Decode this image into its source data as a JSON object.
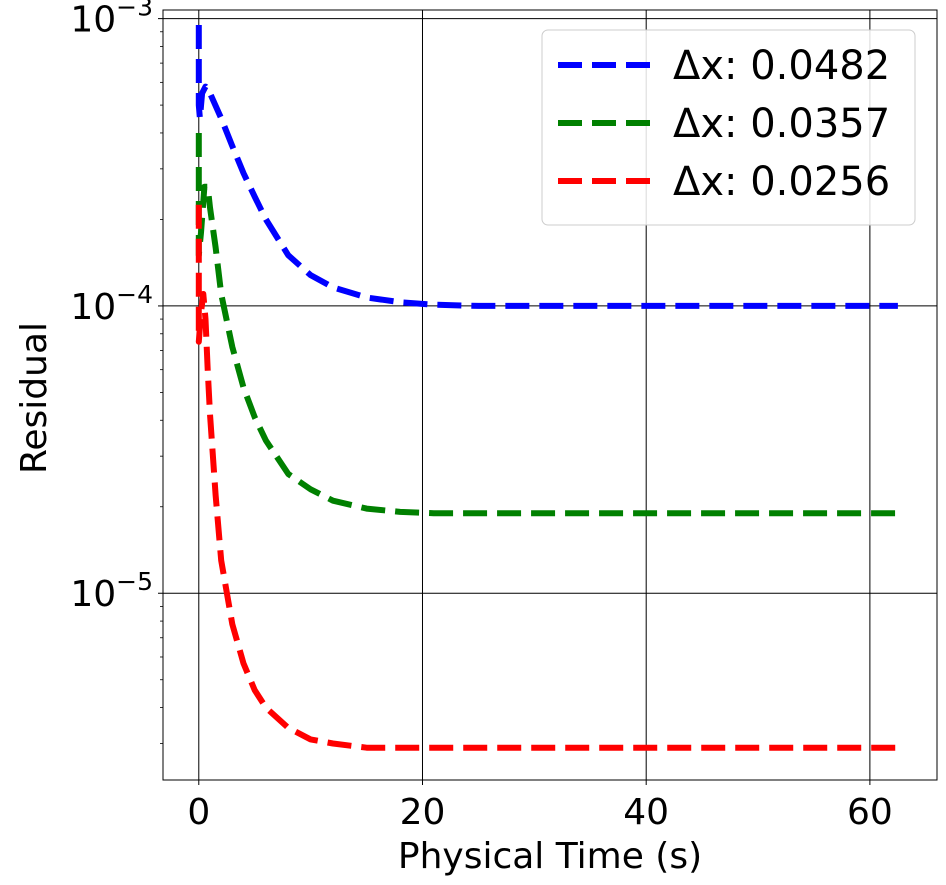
{
  "chart_data": {
    "type": "line",
    "title": "",
    "xlabel": "Physical Time (s)",
    "ylabel": "Residual",
    "xlim": [
      -3.2,
      66
    ],
    "ylim_log10": [
      -5.65,
      -2.97
    ],
    "yscale": "log",
    "grid": true,
    "legend_position": "top-right",
    "x_ticks": [
      {
        "value": 0,
        "label": "0"
      },
      {
        "value": 20,
        "label": "20"
      },
      {
        "value": 40,
        "label": "40"
      },
      {
        "value": 60,
        "label": "60"
      }
    ],
    "y_ticks": [
      {
        "exp": -3,
        "base": "10",
        "sup": "−3"
      },
      {
        "exp": -4,
        "base": "10",
        "sup": "−4"
      },
      {
        "exp": -5,
        "base": "10",
        "sup": "−5"
      }
    ],
    "series": [
      {
        "name": "Δx: 0.0482",
        "color": "#0000ff",
        "x": [
          0,
          0,
          0,
          0.1,
          0.3,
          0.6,
          1,
          2,
          3,
          4,
          5,
          6,
          8,
          10,
          12,
          15,
          18,
          21,
          25,
          30,
          35,
          40,
          45,
          50,
          55,
          60,
          62.5
        ],
        "y": [
          0.00095,
          0.0008,
          0.0005,
          0.00045,
          0.00055,
          0.00058,
          0.00055,
          0.00045,
          0.00036,
          0.00029,
          0.00024,
          0.0002,
          0.00015,
          0.000128,
          0.000116,
          0.000107,
          0.000103,
          0.000101,
          0.0001,
          0.0001,
          0.0001,
          0.0001,
          0.0001,
          0.0001,
          0.0001,
          0.0001,
          0.0001
        ]
      },
      {
        "name": "Δx: 0.0357",
        "color": "#008000",
        "x": [
          0,
          0,
          0,
          0.2,
          0.5,
          0.8,
          1,
          1.5,
          2,
          3,
          4,
          5,
          6,
          8,
          10,
          12,
          15,
          18,
          21,
          25,
          30,
          35,
          40,
          45,
          50,
          55,
          60,
          62.5
        ],
        "y": [
          0.0004,
          0.00025,
          0.00015,
          0.00018,
          0.00026,
          0.00026,
          0.00022,
          0.00016,
          0.00011,
          7.2e-05,
          5.2e-05,
          4.1e-05,
          3.4e-05,
          2.6e-05,
          2.3e-05,
          2.1e-05,
          1.97e-05,
          1.92e-05,
          1.9e-05,
          1.9e-05,
          1.9e-05,
          1.9e-05,
          1.9e-05,
          1.9e-05,
          1.9e-05,
          1.9e-05,
          1.9e-05,
          1.9e-05
        ]
      },
      {
        "name": "Δx: 0.0256",
        "color": "#ff0000",
        "x": [
          0,
          0,
          0,
          0.2,
          0.4,
          0.6,
          0.8,
          1,
          1.5,
          2,
          3,
          4,
          5,
          6,
          8,
          10,
          12,
          15,
          18,
          21,
          25,
          30,
          35,
          40,
          45,
          50,
          55,
          60,
          62.5
        ],
        "y": [
          0.000225,
          0.00012,
          7.5e-05,
          9.5e-05,
          0.00011,
          9e-05,
          6e-05,
          4.2e-05,
          2.2e-05,
          1.3e-05,
          7.8e-06,
          5.7e-06,
          4.6e-06,
          4e-06,
          3.4e-06,
          3.1e-06,
          3e-06,
          2.9e-06,
          2.9e-06,
          2.9e-06,
          2.9e-06,
          2.9e-06,
          2.9e-06,
          2.9e-06,
          2.9e-06,
          2.9e-06,
          2.9e-06,
          2.9e-06,
          2.9e-06
        ]
      }
    ]
  }
}
